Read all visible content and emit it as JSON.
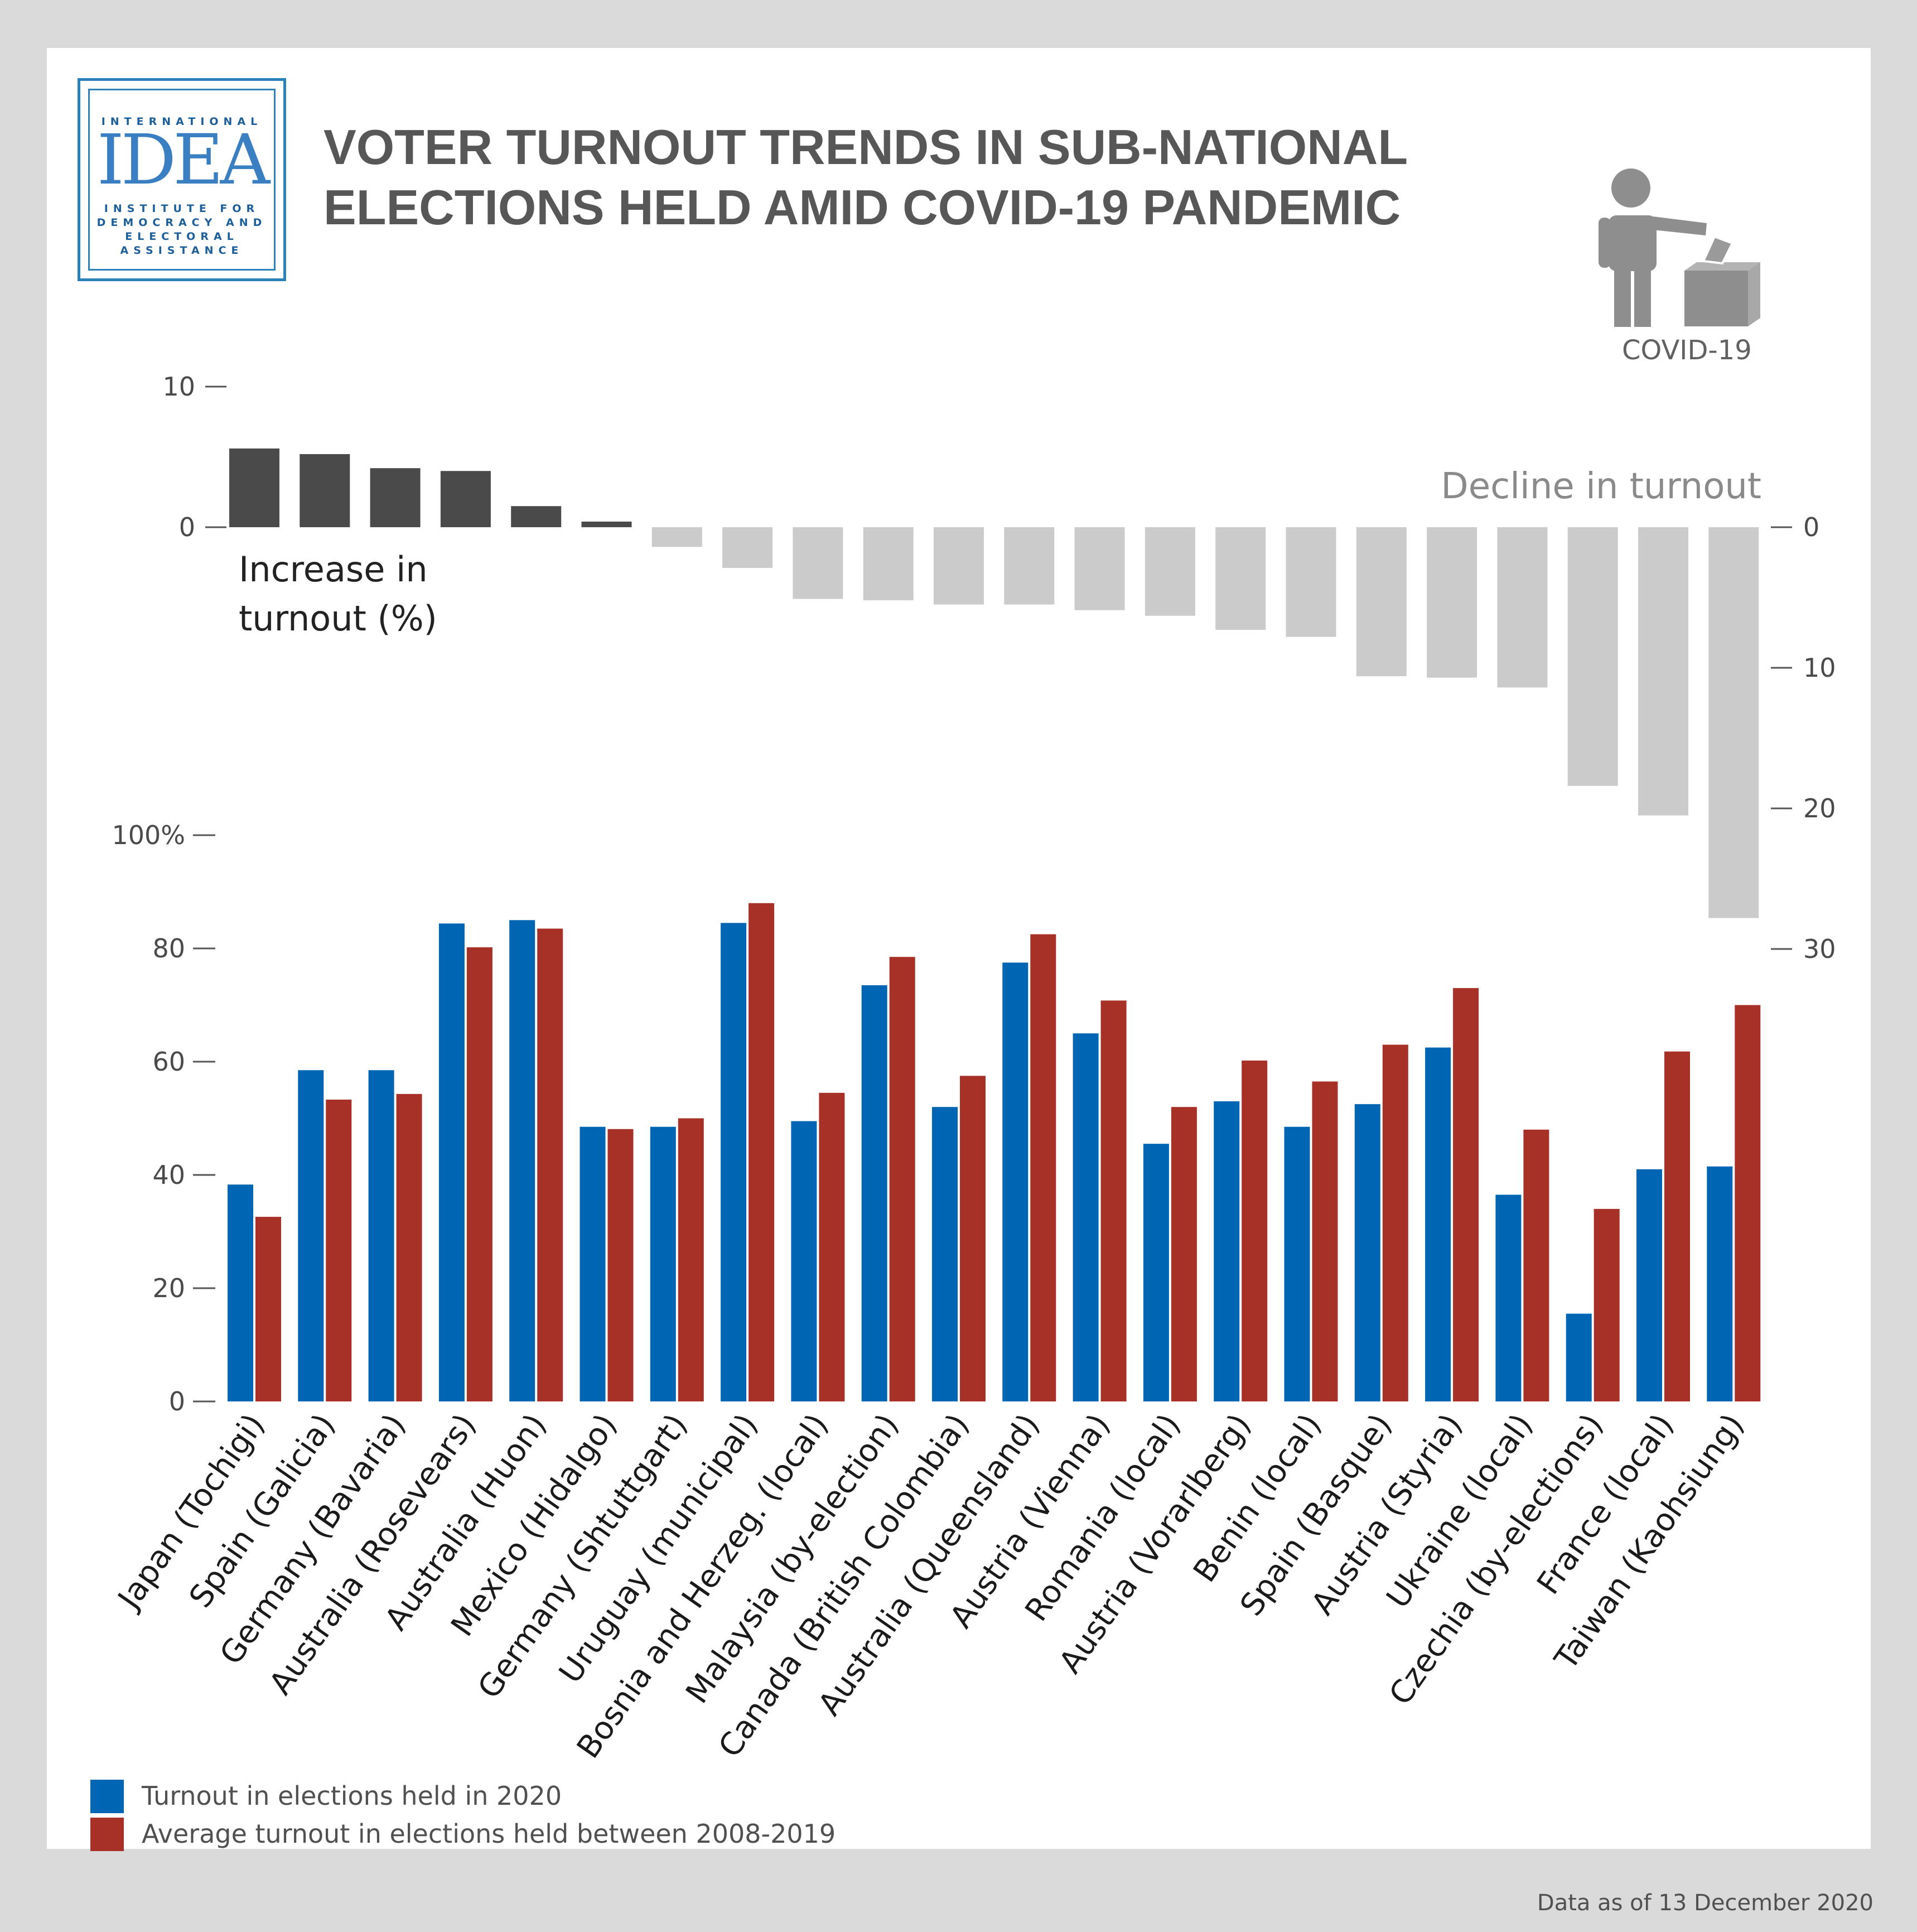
{
  "logo": {
    "top_text": "INTERNATIONAL",
    "mark": "IDEA",
    "line1": "INSTITUTE FOR",
    "line2": "DEMOCRACY AND",
    "line3": "ELECTORAL",
    "line4": "ASSISTANCE"
  },
  "title": {
    "line1": "VOTER TURNOUT TRENDS IN SUB-NATIONAL",
    "line2": "ELECTIONS HELD AMID COVID-19 PANDEMIC"
  },
  "icon": {
    "name": "voter-ballot-icon",
    "label": "COVID-19"
  },
  "colors": {
    "increase": "#4a4a4a",
    "decline": "#cbcbcb",
    "turnout_2020": "#0066b3",
    "average_2008_2019": "#a83127",
    "axis": "#555555"
  },
  "chart_data": [
    {
      "type": "bar",
      "categories": [
        "Japan (Tochigi)",
        "Spain (Galicia)",
        "Germany (Bavaria)",
        "Australia (Rosevears)",
        "Australia (Huon)",
        "Mexico (Hidalgo)",
        "Germany (Shtuttgart)",
        "Uruguay (municipal)",
        "Bosnia and Herzeg. (local)",
        "Malaysia (by-election)",
        "Canada (British Colombia)",
        "Australia (Queensland)",
        "Austria (Vienna)",
        "Romania (local)",
        "Austria (Vorarlberg)",
        "Benin (local)",
        "Spain (Basque)",
        "Austria (Styria)",
        "Ukraine (local)",
        "Czechia (by-elections)",
        "France (local)",
        "Taiwan (Kaohsiung)"
      ],
      "values": [
        5.6,
        5.2,
        4.2,
        4.0,
        1.5,
        0.4,
        -1.4,
        -2.9,
        -5.1,
        -5.2,
        -5.5,
        -5.5,
        -5.9,
        -6.3,
        -7.3,
        -7.8,
        -10.6,
        -10.7,
        -11.4,
        -18.4,
        -20.5,
        -27.8
      ],
      "increase_label_line1": "Increase in",
      "increase_label_line2": "turnout (%)",
      "decline_label": "Decline in turnout",
      "left_ticks": [
        {
          "value": 10,
          "label": "10"
        },
        {
          "value": 0,
          "label": "0"
        }
      ],
      "right_ticks": [
        {
          "value": 0,
          "label": "0"
        },
        {
          "value": 10,
          "label": "10"
        },
        {
          "value": 20,
          "label": "20"
        },
        {
          "value": 30,
          "label": "30"
        }
      ]
    },
    {
      "type": "bar",
      "categories": [
        "Japan (Tochigi)",
        "Spain (Galicia)",
        "Germany (Bavaria)",
        "Australia (Rosevears)",
        "Australia (Huon)",
        "Mexico (Hidalgo)",
        "Germany (Shtuttgart)",
        "Uruguay (municipal)",
        "Bosnia and Herzeg. (local)",
        "Malaysia (by-election)",
        "Canada (British Colombia)",
        "Australia (Queensland)",
        "Austria (Vienna)",
        "Romania (local)",
        "Austria (Vorarlberg)",
        "Benin (local)",
        "Spain (Basque)",
        "Austria (Styria)",
        "Ukraine (local)",
        "Czechia (by-elections)",
        "France (local)",
        "Taiwan (Kaohsiung)"
      ],
      "series": [
        {
          "name": "Turnout in elections held in 2020",
          "values": [
            38.3,
            58.5,
            58.5,
            84.4,
            85.0,
            48.5,
            48.5,
            84.5,
            49.5,
            73.5,
            52.0,
            77.5,
            65.0,
            45.5,
            53.0,
            48.5,
            52.5,
            62.5,
            36.5,
            15.5,
            41.0,
            41.5
          ]
        },
        {
          "name": "Average turnout in elections held between 2008-2019",
          "values": [
            32.6,
            53.3,
            54.3,
            80.2,
            83.5,
            48.1,
            50.0,
            88.0,
            54.5,
            78.5,
            57.5,
            82.5,
            70.8,
            52.0,
            60.2,
            56.5,
            63.0,
            73.0,
            48.0,
            34.0,
            61.8,
            70.0
          ]
        }
      ],
      "ylim": [
        0,
        100
      ],
      "ticks": [
        {
          "value": 100,
          "label": "100%"
        },
        {
          "value": 80,
          "label": "80"
        },
        {
          "value": 60,
          "label": "60"
        },
        {
          "value": 40,
          "label": "40"
        },
        {
          "value": 20,
          "label": "20"
        },
        {
          "value": 0,
          "label": "0"
        }
      ]
    }
  ],
  "legend": [
    {
      "label": "Turnout in elections held in 2020"
    },
    {
      "label": "Average turnout in elections held between 2008-2019"
    }
  ],
  "footnote": "Data as of 13 December 2020"
}
